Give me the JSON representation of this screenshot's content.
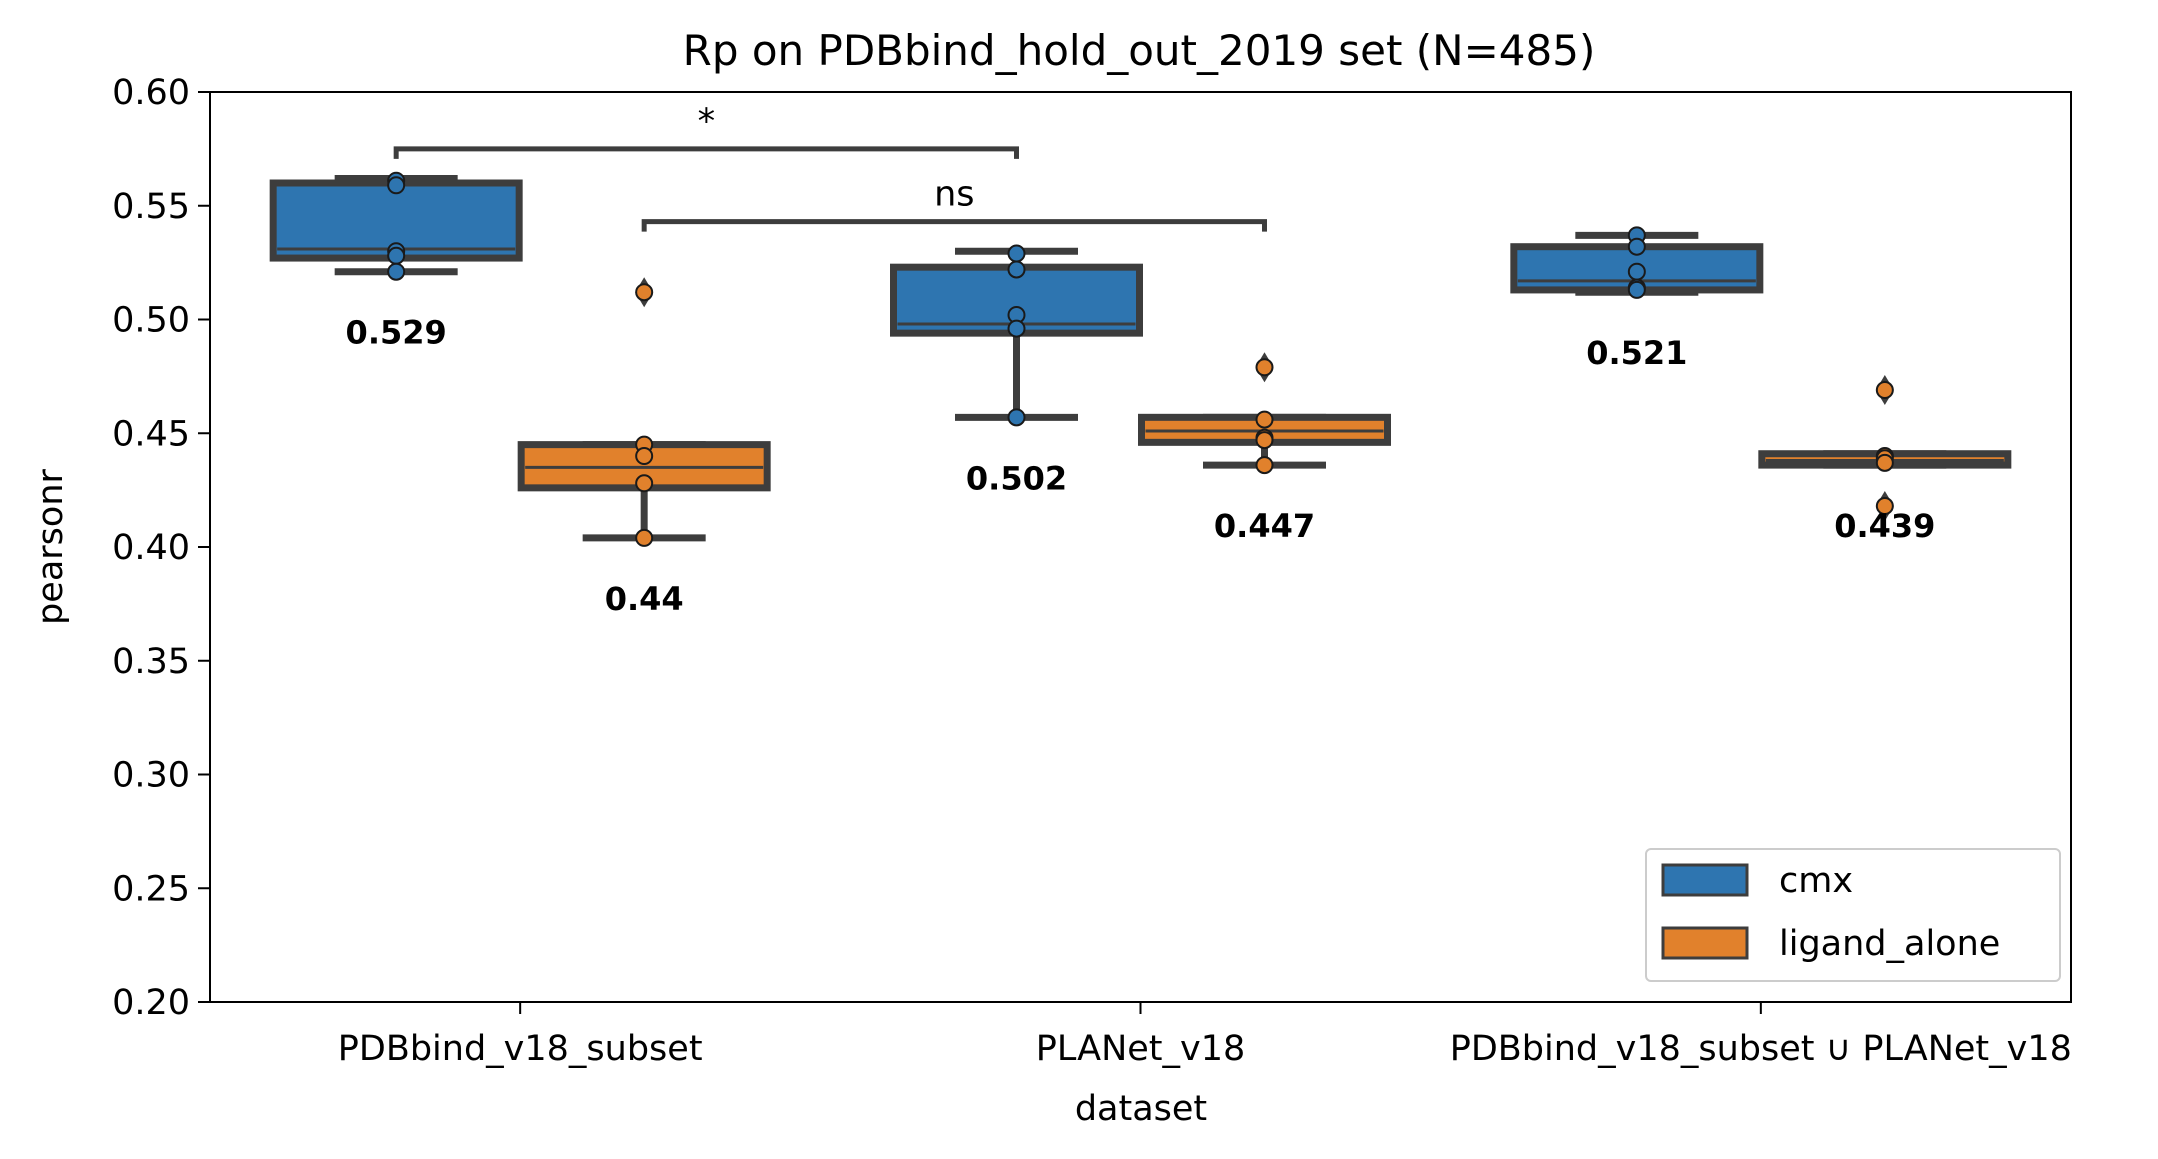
{
  "chart_data": {
    "type": "box",
    "title": "Rp on PDBbind_hold_out_2019 set (N=485)",
    "xlabel": "dataset",
    "ylabel": "pearsonr",
    "ylim": [
      0.2,
      0.6
    ],
    "yticks": [
      "0.20",
      "0.25",
      "0.30",
      "0.35",
      "0.40",
      "0.45",
      "0.50",
      "0.55",
      "0.60"
    ],
    "categories": [
      "PDBbind_v18_subset",
      "PLANet_v18",
      "PDBbind_v18_subset ∪ PLANet_v18"
    ],
    "legend_position": "lower-right",
    "grid": false,
    "series": [
      {
        "name": "cmx",
        "color": "#2e75b0",
        "boxes": [
          {
            "q1": 0.527,
            "median": 0.531,
            "q3": 0.56,
            "whisker_low": 0.521,
            "whisker_high": 0.562,
            "points": [
              0.561,
              0.559,
              0.53,
              0.528,
              0.521
            ],
            "outliers": [],
            "label": "0.529"
          },
          {
            "q1": 0.494,
            "median": 0.498,
            "q3": 0.523,
            "whisker_low": 0.457,
            "whisker_high": 0.53,
            "points": [
              0.529,
              0.522,
              0.502,
              0.496,
              0.457
            ],
            "outliers": [],
            "label": "0.502"
          },
          {
            "q1": 0.513,
            "median": 0.517,
            "q3": 0.532,
            "whisker_low": 0.512,
            "whisker_high": 0.537,
            "points": [
              0.537,
              0.532,
              0.521,
              0.514,
              0.513
            ],
            "outliers": [],
            "label": "0.521"
          }
        ]
      },
      {
        "name": "ligand_alone",
        "color": "#e1812c",
        "boxes": [
          {
            "q1": 0.426,
            "median": 0.435,
            "q3": 0.445,
            "whisker_low": 0.404,
            "whisker_high": 0.445,
            "points": [
              0.445,
              0.44,
              0.428,
              0.404
            ],
            "outliers": [
              0.512
            ],
            "label": "0.44"
          },
          {
            "q1": 0.446,
            "median": 0.451,
            "q3": 0.457,
            "whisker_low": 0.436,
            "whisker_high": 0.457,
            "points": [
              0.456,
              0.448,
              0.447,
              0.436
            ],
            "outliers": [
              0.479
            ],
            "label": "0.447"
          },
          {
            "q1": 0.436,
            "median": 0.438,
            "q3": 0.441,
            "whisker_low": 0.436,
            "whisker_high": 0.441,
            "points": [
              0.44,
              0.439,
              0.437
            ],
            "outliers": [
              0.469,
              0.418
            ],
            "label": "0.439"
          }
        ]
      }
    ],
    "significance": [
      {
        "from_category": 0,
        "from_series": 0,
        "to_category": 1,
        "to_series": 0,
        "y": 0.575,
        "label": "*"
      },
      {
        "from_category": 0,
        "from_series": 1,
        "to_category": 1,
        "to_series": 1,
        "y": 0.543,
        "label": "ns"
      }
    ],
    "legend": [
      {
        "label": "cmx",
        "color": "#2e75b0"
      },
      {
        "label": "ligand_alone",
        "color": "#e1812c"
      }
    ]
  }
}
